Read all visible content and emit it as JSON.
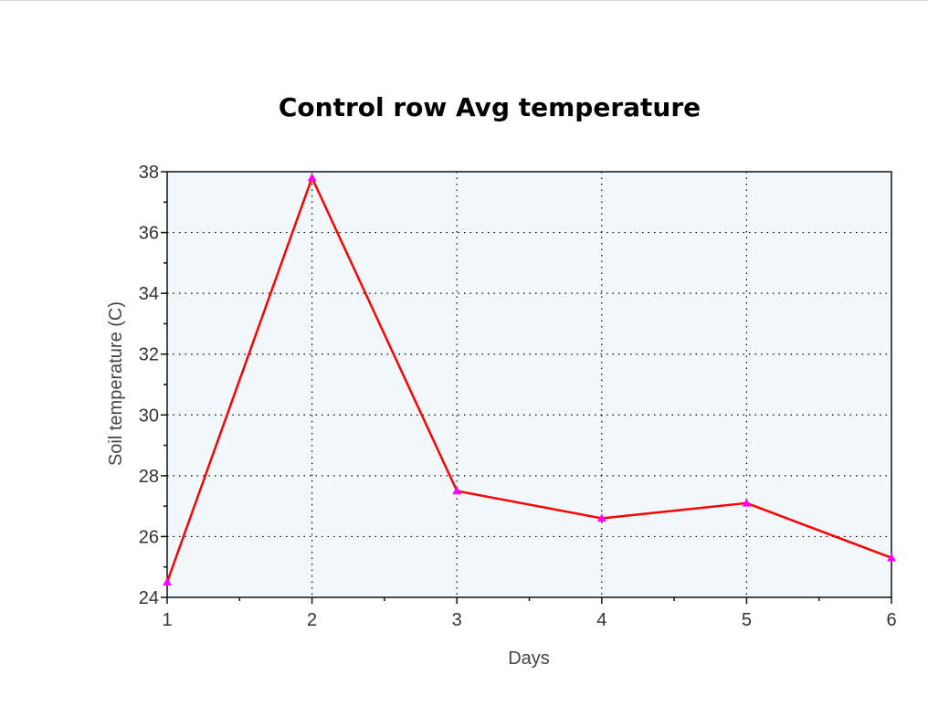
{
  "chart_data": {
    "type": "line",
    "title": "Control row Avg temperature",
    "xlabel": "Days",
    "ylabel": "Soil temperature (C)",
    "x": [
      1,
      2,
      3,
      4,
      5,
      6
    ],
    "xticks": [
      "1",
      "2",
      "3",
      "4",
      "5",
      "6"
    ],
    "yticks": [
      "24",
      "26",
      "28",
      "30",
      "32",
      "34",
      "36",
      "38"
    ],
    "xlim": [
      1,
      6
    ],
    "ylim": [
      24,
      38
    ],
    "grid": true,
    "legend": "none",
    "series": [
      {
        "values": [
          24.5,
          37.8,
          27.5,
          26.6,
          27.1,
          25.3
        ],
        "color": "#ff0000",
        "marker": "triangle",
        "marker_color": "#ff00ff"
      }
    ],
    "background_color": "#f3f8fc"
  }
}
